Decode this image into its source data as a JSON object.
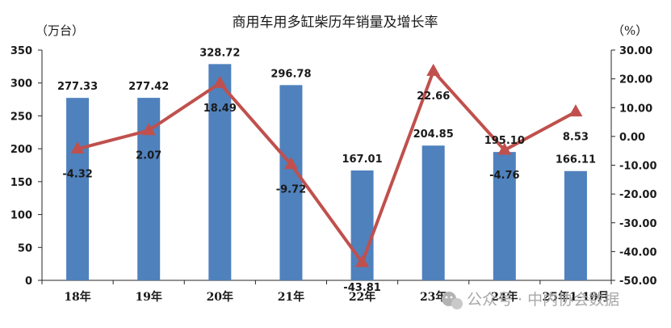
{
  "chart_data": {
    "type": "bar",
    "title": "商用车用多缸柴历年销量及增长率",
    "left_unit": "（万台）",
    "right_unit": "（%）",
    "categories": [
      "18年",
      "19年",
      "20年",
      "21年",
      "22年",
      "23年",
      "24年",
      "25年1-10月"
    ],
    "series": [
      {
        "type": "bar",
        "axis": "left",
        "color": "#4f81bd",
        "values": [
          277.33,
          277.42,
          328.72,
          296.78,
          167.01,
          204.85,
          195.1,
          166.11
        ],
        "labels": [
          "277.33",
          "277.42",
          "328.72",
          "296.78",
          "167.01",
          "204.85",
          "195.10",
          "166.11"
        ]
      },
      {
        "type": "line",
        "axis": "right",
        "color": "#c0504d",
        "marker": "triangle",
        "values": [
          -4.32,
          2.07,
          18.49,
          -9.72,
          -43.81,
          22.66,
          -4.76,
          8.53
        ],
        "labels": [
          "-4.32",
          "2.07",
          "18.49",
          "-9.72",
          "-43.81",
          "22.66",
          "-4.76",
          "8.53"
        ]
      }
    ],
    "left_axis": {
      "min": 0,
      "max": 350,
      "step": 50,
      "ticks": [
        "0",
        "50",
        "100",
        "150",
        "200",
        "250",
        "300",
        "350"
      ]
    },
    "right_axis": {
      "min": -50,
      "max": 30,
      "step": 10,
      "ticks": [
        "-50.00",
        "-40.00",
        "-30.00",
        "-20.00",
        "-10.00",
        "0.00",
        "10.00",
        "20.00",
        "30.00"
      ]
    },
    "grid": false,
    "legend": "none"
  },
  "watermark": {
    "text": "公众号 · 中内协会数据"
  }
}
